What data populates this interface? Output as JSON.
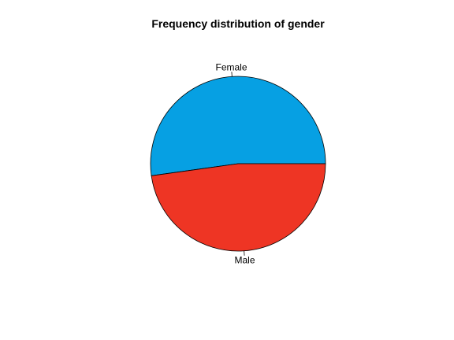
{
  "chart_data": {
    "type": "pie",
    "title": "Frequency distribution of gender",
    "categories": [
      "Female",
      "Male"
    ],
    "values": [
      52.2,
      47.8
    ],
    "colors": [
      "#06A0E3",
      "#EE3524"
    ],
    "start_angle_deg": 0,
    "direction": "counterclockwise",
    "legend": "none"
  }
}
